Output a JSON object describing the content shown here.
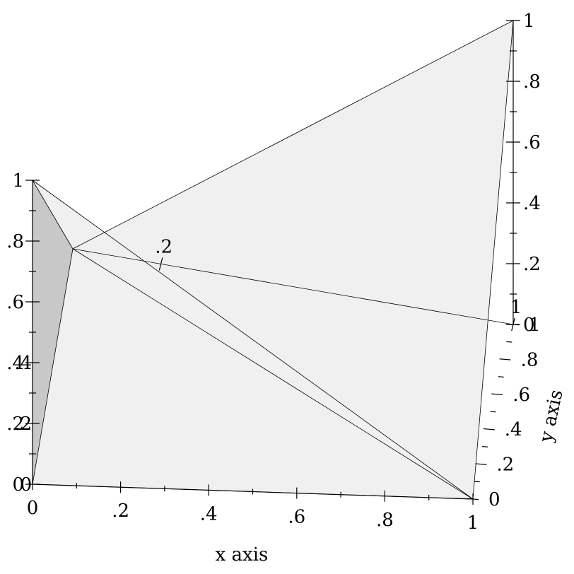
{
  "chart_data": {
    "type": "surface3d",
    "title": "",
    "xlabel": "x axis",
    "ylabel": "y axis",
    "zlabel": "",
    "xlim": [
      0,
      1
    ],
    "ylim": [
      0,
      1
    ],
    "zlim": [
      0,
      1
    ],
    "grid": false,
    "legend": "none",
    "colors": {
      "face_light": "#f0f0f0",
      "face_dark": "#c8c8c8",
      "face_hole": "#ffffff",
      "edge": "#000000",
      "axis": "#000000"
    },
    "vertices": [
      {
        "id": "apex",
        "x": 0,
        "y": 0,
        "z": 1
      },
      {
        "id": "origin",
        "x": 0,
        "y": 0,
        "z": 0
      },
      {
        "id": "x-end",
        "x": 1,
        "y": 0,
        "z": 0
      },
      {
        "id": "far-top",
        "x": 1,
        "y": 1,
        "z": 1
      },
      {
        "id": "inner",
        "x": 0,
        "y": 1,
        "z": 0.2
      }
    ],
    "faces": [
      {
        "name": "face-left",
        "vertices": [
          "apex",
          "origin",
          "inner"
        ],
        "shade": "dark"
      },
      {
        "name": "face-front",
        "vertices": [
          "origin",
          "x-end",
          "inner"
        ],
        "shade": "light"
      },
      {
        "name": "face-upper-left",
        "vertices": [
          "apex",
          "inner",
          "x-end"
        ],
        "shade": "light"
      },
      {
        "name": "face-right",
        "vertices": [
          "inner",
          "far-top",
          "x-end"
        ],
        "shade": "light"
      }
    ],
    "x_ticks": [
      {
        "value": 0,
        "label": "0"
      },
      {
        "value": 0.2,
        "label": ".2"
      },
      {
        "value": 0.4,
        "label": ".4"
      },
      {
        "value": 0.6,
        "label": ".6"
      },
      {
        "value": 0.8,
        "label": ".8"
      },
      {
        "value": 1,
        "label": "1"
      }
    ],
    "y_ticks": [
      {
        "value": 0,
        "label": "0"
      },
      {
        "value": 0.2,
        "label": ".2"
      },
      {
        "value": 0.4,
        "label": ".4"
      },
      {
        "value": 0.6,
        "label": ".6"
      },
      {
        "value": 0.8,
        "label": ".8"
      },
      {
        "value": 1,
        "label": "1"
      }
    ],
    "z_ticks_left": [
      {
        "value": 0,
        "label": "0"
      },
      {
        "value": 0.2,
        "label": ".2"
      },
      {
        "value": 0.4,
        "label": ".4"
      },
      {
        "value": 0.6,
        "label": ".6"
      },
      {
        "value": 0.8,
        "label": ".8"
      },
      {
        "value": 1,
        "label": "1"
      }
    ],
    "z_ticks_right": [
      {
        "value": 0,
        "label": "0"
      },
      {
        "value": 0.2,
        "label": ".2"
      },
      {
        "value": 0.4,
        "label": ".4"
      },
      {
        "value": 0.6,
        "label": ".6"
      },
      {
        "value": 0.8,
        "label": ".8"
      },
      {
        "value": 1,
        "label": "1"
      }
    ],
    "back_x_ticks": [
      {
        "value": 0.2,
        "label": ".2"
      },
      {
        "value": 1,
        "label": "1"
      }
    ],
    "back_z_ticks": [
      {
        "value": 0.2,
        "label": ".2"
      },
      {
        "value": 0.4,
        "label": ".4"
      },
      {
        "value": 0,
        "label": "0"
      }
    ]
  }
}
